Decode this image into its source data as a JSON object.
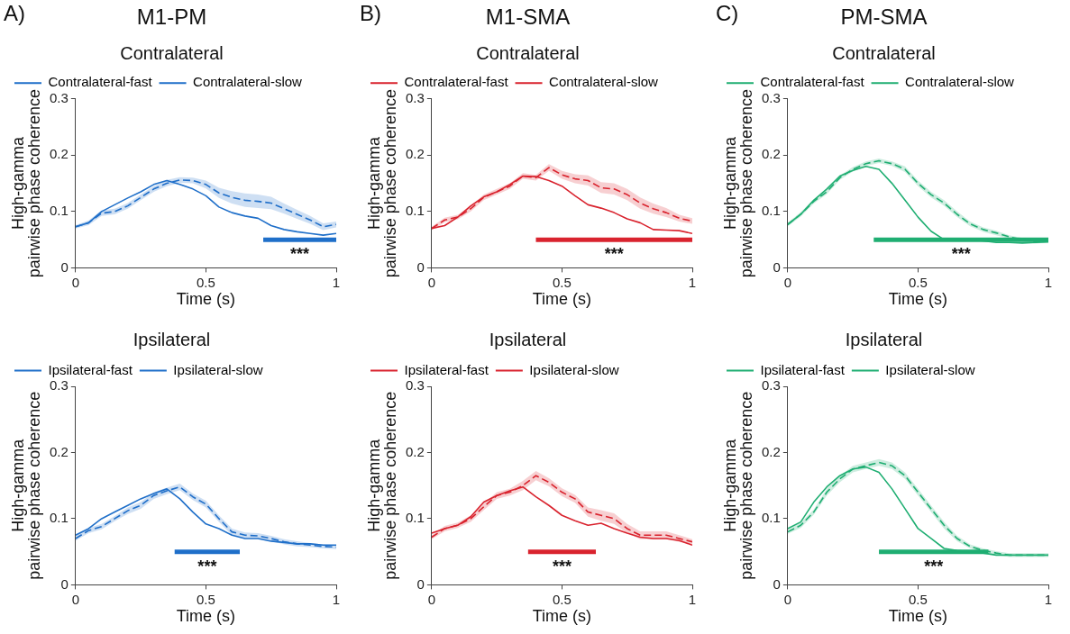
{
  "chart_data": [
    {
      "type": "line",
      "title": "M1-PM",
      "subtitle": "Contralateral",
      "xlabel": "Time (s)",
      "ylabel": "High-gamma pairwise phase coherence",
      "annotations": [
        "A)",
        "***"
      ],
      "x": [
        0,
        0.05,
        0.1,
        0.15,
        0.2,
        0.25,
        0.3,
        0.35,
        0.4,
        0.45,
        0.5,
        0.55,
        0.6,
        0.65,
        0.7,
        0.75,
        0.8,
        0.85,
        0.9,
        0.95,
        1
      ],
      "xlim": [
        0,
        1
      ],
      "xticks": [
        0,
        0.5,
        1
      ],
      "ylim": [
        0,
        0.3
      ],
      "yticks": [
        0,
        0.1,
        0.2,
        0.3
      ],
      "grid": false,
      "legend": "top left",
      "marker": "none",
      "series": [
        {
          "name": "Contralateral-fast",
          "color": "#1f6fc9",
          "line_style": "solid",
          "values": [
            0.073,
            0.08,
            0.1,
            0.112,
            0.124,
            0.135,
            0.148,
            0.155,
            0.148,
            0.14,
            0.128,
            0.108,
            0.098,
            0.092,
            0.088,
            0.075,
            0.068,
            0.064,
            0.061,
            0.058,
            0.061
          ]
        },
        {
          "name": "Contralateral-slow",
          "color": "#1f6fc9",
          "line_style": "dashed",
          "values": [
            0.073,
            0.08,
            0.097,
            0.1,
            0.11,
            0.125,
            0.14,
            0.15,
            0.156,
            0.155,
            0.148,
            0.133,
            0.125,
            0.12,
            0.118,
            0.115,
            0.105,
            0.095,
            0.085,
            0.073,
            0.077
          ],
          "lower": [
            0.07,
            0.076,
            0.092,
            0.095,
            0.105,
            0.12,
            0.135,
            0.145,
            0.151,
            0.15,
            0.141,
            0.124,
            0.114,
            0.108,
            0.106,
            0.104,
            0.096,
            0.087,
            0.078,
            0.067,
            0.072
          ],
          "upper": [
            0.076,
            0.084,
            0.102,
            0.105,
            0.115,
            0.13,
            0.145,
            0.156,
            0.161,
            0.16,
            0.155,
            0.142,
            0.136,
            0.132,
            0.13,
            0.126,
            0.114,
            0.103,
            0.092,
            0.079,
            0.082
          ]
        },
        {
          "type": "line",
          "color": "#1f6fc9",
          "line_style": "solid",
          "x": [
            0.72,
            1
          ],
          "values": [
            0.05,
            0.05
          ]
        }
      ]
    },
    {
      "type": "line",
      "title": "M1-SMA",
      "subtitle": "Contralateral",
      "xlabel": "Time (s)",
      "ylabel": "High-gamma pairwise phase coherence",
      "annotations": [
        "B)",
        "***"
      ],
      "x": [
        0,
        0.05,
        0.1,
        0.15,
        0.2,
        0.25,
        0.3,
        0.35,
        0.4,
        0.45,
        0.5,
        0.55,
        0.6,
        0.65,
        0.7,
        0.75,
        0.8,
        0.85,
        0.9,
        0.95,
        1
      ],
      "xlim": [
        0,
        1
      ],
      "xticks": [
        0,
        0.5,
        1
      ],
      "ylim": [
        0,
        0.3
      ],
      "yticks": [
        0,
        0.1,
        0.2,
        0.3
      ],
      "grid": false,
      "legend": "top left",
      "marker": "none",
      "series": [
        {
          "name": "Contralateral-fast",
          "color": "#d9232e",
          "line_style": "solid",
          "values": [
            0.07,
            0.075,
            0.09,
            0.11,
            0.126,
            0.135,
            0.148,
            0.163,
            0.162,
            0.155,
            0.145,
            0.128,
            0.112,
            0.106,
            0.098,
            0.087,
            0.08,
            0.068,
            0.067,
            0.066,
            0.061
          ]
        },
        {
          "name": "Contralateral-slow",
          "color": "#d9232e",
          "line_style": "dashed",
          "values": [
            0.07,
            0.085,
            0.09,
            0.105,
            0.125,
            0.135,
            0.145,
            0.163,
            0.16,
            0.178,
            0.165,
            0.158,
            0.155,
            0.142,
            0.14,
            0.13,
            0.115,
            0.105,
            0.098,
            0.088,
            0.083
          ],
          "lower": [
            0.067,
            0.081,
            0.086,
            0.1,
            0.12,
            0.13,
            0.14,
            0.158,
            0.155,
            0.172,
            0.158,
            0.15,
            0.146,
            0.133,
            0.13,
            0.12,
            0.105,
            0.096,
            0.09,
            0.082,
            0.078
          ],
          "upper": [
            0.073,
            0.089,
            0.094,
            0.11,
            0.13,
            0.14,
            0.15,
            0.168,
            0.165,
            0.184,
            0.172,
            0.166,
            0.164,
            0.152,
            0.15,
            0.14,
            0.125,
            0.114,
            0.106,
            0.094,
            0.088
          ]
        },
        {
          "type": "line",
          "color": "#d9232e",
          "line_style": "solid",
          "x": [
            0.4,
            1
          ],
          "values": [
            0.05,
            0.05
          ]
        }
      ]
    },
    {
      "type": "line",
      "title": "PM-SMA",
      "subtitle": "Contralateral",
      "xlabel": "Time (s)",
      "ylabel": "High-gamma pairwise phase coherence",
      "annotations": [
        "C)",
        "***"
      ],
      "x": [
        0,
        0.05,
        0.1,
        0.15,
        0.2,
        0.25,
        0.3,
        0.35,
        0.4,
        0.45,
        0.5,
        0.55,
        0.6,
        0.65,
        0.7,
        0.75,
        0.8,
        0.85,
        0.9,
        0.95,
        1
      ],
      "xlim": [
        0,
        1
      ],
      "xticks": [
        0,
        0.5,
        1
      ],
      "ylim": [
        0,
        0.3
      ],
      "yticks": [
        0,
        0.1,
        0.2,
        0.3
      ],
      "grid": false,
      "legend": "top left",
      "marker": "none",
      "series": [
        {
          "name": "Contralateral-fast",
          "color": "#1fae72",
          "line_style": "solid",
          "values": [
            0.077,
            0.095,
            0.12,
            0.14,
            0.163,
            0.173,
            0.18,
            0.175,
            0.15,
            0.12,
            0.09,
            0.065,
            0.05,
            0.05,
            0.05,
            0.048,
            0.045,
            0.045,
            0.044,
            0.045,
            0.046
          ]
        },
        {
          "name": "Contralateral-slow",
          "color": "#1fae72",
          "line_style": "dashed",
          "values": [
            0.077,
            0.095,
            0.118,
            0.135,
            0.16,
            0.175,
            0.185,
            0.19,
            0.185,
            0.175,
            0.15,
            0.13,
            0.115,
            0.095,
            0.078,
            0.068,
            0.062,
            0.055,
            0.05,
            0.046,
            0.048
          ],
          "lower": [
            0.074,
            0.091,
            0.114,
            0.131,
            0.156,
            0.171,
            0.181,
            0.186,
            0.181,
            0.17,
            0.145,
            0.125,
            0.11,
            0.09,
            0.074,
            0.064,
            0.058,
            0.052,
            0.047,
            0.043,
            0.045
          ],
          "upper": [
            0.08,
            0.099,
            0.122,
            0.139,
            0.164,
            0.179,
            0.189,
            0.194,
            0.189,
            0.18,
            0.155,
            0.135,
            0.12,
            0.1,
            0.082,
            0.072,
            0.066,
            0.058,
            0.053,
            0.049,
            0.051
          ]
        },
        {
          "type": "line",
          "color": "#1fae72",
          "line_style": "solid",
          "x": [
            0.33,
            1
          ],
          "values": [
            0.05,
            0.05
          ]
        }
      ]
    },
    {
      "type": "line",
      "title": "Ipsilateral",
      "xlabel": "Time (s)",
      "ylabel": "High-gamma pairwise phase coherence",
      "annotations": [
        "***"
      ],
      "x": [
        0,
        0.05,
        0.1,
        0.15,
        0.2,
        0.25,
        0.3,
        0.35,
        0.4,
        0.45,
        0.5,
        0.55,
        0.6,
        0.65,
        0.7,
        0.75,
        0.8,
        0.85,
        0.9,
        0.95,
        1
      ],
      "xlim": [
        0,
        1
      ],
      "xticks": [
        0,
        0.5,
        1
      ],
      "ylim": [
        0,
        0.3
      ],
      "yticks": [
        0,
        0.1,
        0.2,
        0.3
      ],
      "grid": false,
      "legend": "top left",
      "marker": "none",
      "series": [
        {
          "name": "Ipsilateral-fast",
          "color": "#1f6fc9",
          "line_style": "solid",
          "values": [
            0.075,
            0.085,
            0.1,
            0.11,
            0.12,
            0.13,
            0.138,
            0.145,
            0.13,
            0.11,
            0.092,
            0.085,
            0.075,
            0.07,
            0.07,
            0.066,
            0.064,
            0.062,
            0.062,
            0.06,
            0.06
          ]
        },
        {
          "name": "Ipsilateral-slow",
          "color": "#1f6fc9",
          "line_style": "dashed",
          "values": [
            0.07,
            0.082,
            0.088,
            0.1,
            0.112,
            0.12,
            0.135,
            0.142,
            0.148,
            0.133,
            0.122,
            0.1,
            0.08,
            0.075,
            0.074,
            0.07,
            0.065,
            0.062,
            0.06,
            0.058,
            0.057
          ],
          "lower": [
            0.067,
            0.078,
            0.084,
            0.096,
            0.107,
            0.115,
            0.13,
            0.137,
            0.143,
            0.128,
            0.117,
            0.095,
            0.075,
            0.071,
            0.07,
            0.066,
            0.061,
            0.058,
            0.057,
            0.055,
            0.054
          ],
          "upper": [
            0.073,
            0.086,
            0.092,
            0.104,
            0.117,
            0.125,
            0.14,
            0.147,
            0.153,
            0.138,
            0.127,
            0.105,
            0.085,
            0.079,
            0.078,
            0.074,
            0.069,
            0.066,
            0.063,
            0.061,
            0.06
          ]
        },
        {
          "type": "line",
          "color": "#1f6fc9",
          "line_style": "solid",
          "x": [
            0.38,
            0.63
          ],
          "values": [
            0.05,
            0.05
          ]
        }
      ]
    },
    {
      "type": "line",
      "title": "Ipsilateral",
      "xlabel": "Time (s)",
      "ylabel": "High-gamma pairwise phase coherence",
      "annotations": [
        "***"
      ],
      "x": [
        0,
        0.05,
        0.1,
        0.15,
        0.2,
        0.25,
        0.3,
        0.35,
        0.4,
        0.45,
        0.5,
        0.55,
        0.6,
        0.65,
        0.7,
        0.75,
        0.8,
        0.85,
        0.9,
        0.95,
        1
      ],
      "xlim": [
        0,
        1
      ],
      "xticks": [
        0,
        0.5,
        1
      ],
      "ylim": [
        0,
        0.3
      ],
      "yticks": [
        0,
        0.1,
        0.2,
        0.3
      ],
      "grid": false,
      "legend": "top left",
      "marker": "none",
      "series": [
        {
          "name": "Ipsilateral-fast",
          "color": "#d9232e",
          "line_style": "solid",
          "values": [
            0.078,
            0.085,
            0.09,
            0.103,
            0.125,
            0.135,
            0.142,
            0.148,
            0.133,
            0.12,
            0.105,
            0.097,
            0.09,
            0.093,
            0.085,
            0.078,
            0.072,
            0.07,
            0.07,
            0.067,
            0.06
          ]
        },
        {
          "name": "Ipsilateral-slow",
          "color": "#d9232e",
          "line_style": "dashed",
          "values": [
            0.072,
            0.085,
            0.09,
            0.1,
            0.118,
            0.135,
            0.14,
            0.15,
            0.165,
            0.155,
            0.14,
            0.13,
            0.11,
            0.105,
            0.1,
            0.085,
            0.075,
            0.075,
            0.075,
            0.07,
            0.065
          ],
          "lower": [
            0.069,
            0.081,
            0.086,
            0.095,
            0.113,
            0.13,
            0.135,
            0.143,
            0.158,
            0.149,
            0.134,
            0.124,
            0.103,
            0.097,
            0.092,
            0.078,
            0.069,
            0.069,
            0.069,
            0.065,
            0.061
          ],
          "upper": [
            0.075,
            0.089,
            0.094,
            0.105,
            0.123,
            0.14,
            0.145,
            0.157,
            0.172,
            0.161,
            0.146,
            0.136,
            0.117,
            0.113,
            0.108,
            0.092,
            0.081,
            0.081,
            0.081,
            0.075,
            0.069
          ]
        },
        {
          "type": "line",
          "color": "#d9232e",
          "line_style": "solid",
          "x": [
            0.37,
            0.63
          ],
          "values": [
            0.05,
            0.05
          ]
        }
      ]
    },
    {
      "type": "line",
      "title": "Ipsilateral",
      "xlabel": "Time (s)",
      "ylabel": "High-gamma pairwise phase coherence",
      "annotations": [
        "***"
      ],
      "x": [
        0,
        0.05,
        0.1,
        0.15,
        0.2,
        0.25,
        0.3,
        0.35,
        0.4,
        0.45,
        0.5,
        0.55,
        0.6,
        0.65,
        0.7,
        0.75,
        0.8,
        0.85,
        0.9,
        0.95,
        1
      ],
      "xlim": [
        0,
        1
      ],
      "xticks": [
        0,
        0.5,
        1
      ],
      "ylim": [
        0,
        0.3
      ],
      "yticks": [
        0,
        0.1,
        0.2,
        0.3
      ],
      "grid": false,
      "legend": "top left",
      "marker": "none",
      "series": [
        {
          "name": "Ipsilateral-fast",
          "color": "#1fae72",
          "line_style": "solid",
          "values": [
            0.085,
            0.095,
            0.125,
            0.148,
            0.165,
            0.175,
            0.178,
            0.17,
            0.145,
            0.115,
            0.085,
            0.07,
            0.055,
            0.052,
            0.05,
            0.048,
            0.045,
            0.045,
            0.045,
            0.045,
            0.045
          ]
        },
        {
          "name": "Ipsilateral-slow",
          "color": "#1fae72",
          "line_style": "dashed",
          "values": [
            0.08,
            0.09,
            0.11,
            0.14,
            0.16,
            0.175,
            0.18,
            0.185,
            0.18,
            0.165,
            0.14,
            0.115,
            0.09,
            0.07,
            0.058,
            0.052,
            0.048,
            0.045,
            0.045,
            0.045,
            0.045
          ],
          "lower": [
            0.077,
            0.086,
            0.106,
            0.135,
            0.155,
            0.17,
            0.175,
            0.18,
            0.175,
            0.16,
            0.135,
            0.11,
            0.085,
            0.066,
            0.055,
            0.049,
            0.045,
            0.042,
            0.042,
            0.042,
            0.042
          ],
          "upper": [
            0.083,
            0.094,
            0.114,
            0.145,
            0.165,
            0.18,
            0.185,
            0.19,
            0.185,
            0.17,
            0.145,
            0.12,
            0.095,
            0.074,
            0.061,
            0.055,
            0.051,
            0.048,
            0.048,
            0.048,
            0.048
          ]
        },
        {
          "type": "line",
          "color": "#1fae72",
          "line_style": "solid",
          "x": [
            0.35,
            0.77
          ],
          "values": [
            0.05,
            0.05
          ]
        }
      ]
    }
  ]
}
